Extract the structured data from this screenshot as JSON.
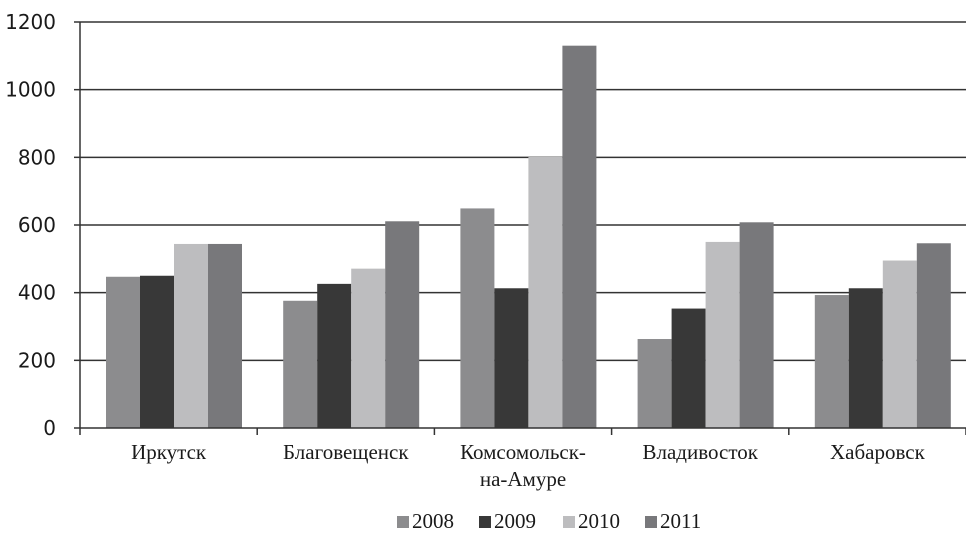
{
  "chart_data": {
    "type": "bar",
    "title": "",
    "xlabel": "",
    "ylabel": "",
    "ylim": [
      0,
      1200
    ],
    "yticks": [
      "0",
      "200",
      "400",
      "600",
      "800",
      "1000",
      "1200"
    ],
    "grid": true,
    "legend_position": "bottom",
    "categories": [
      [
        "Иркутск"
      ],
      [
        "Благовещенск"
      ],
      [
        "Комсомольск-",
        "на-Амуре"
      ],
      [
        "Владивосток"
      ],
      [
        "Хабаровск"
      ]
    ],
    "series": [
      {
        "name": "2008",
        "color": "#8c8c8e",
        "values": [
          447,
          376,
          649,
          263,
          393
        ]
      },
      {
        "name": "2009",
        "color": "#383838",
        "values": [
          450,
          426,
          413,
          353,
          413
        ]
      },
      {
        "name": "2010",
        "color": "#bdbdbf",
        "values": [
          544,
          471,
          801,
          550,
          495
        ]
      },
      {
        "name": "2011",
        "color": "#78787b",
        "values": [
          544,
          611,
          1130,
          608,
          546
        ]
      }
    ]
  }
}
